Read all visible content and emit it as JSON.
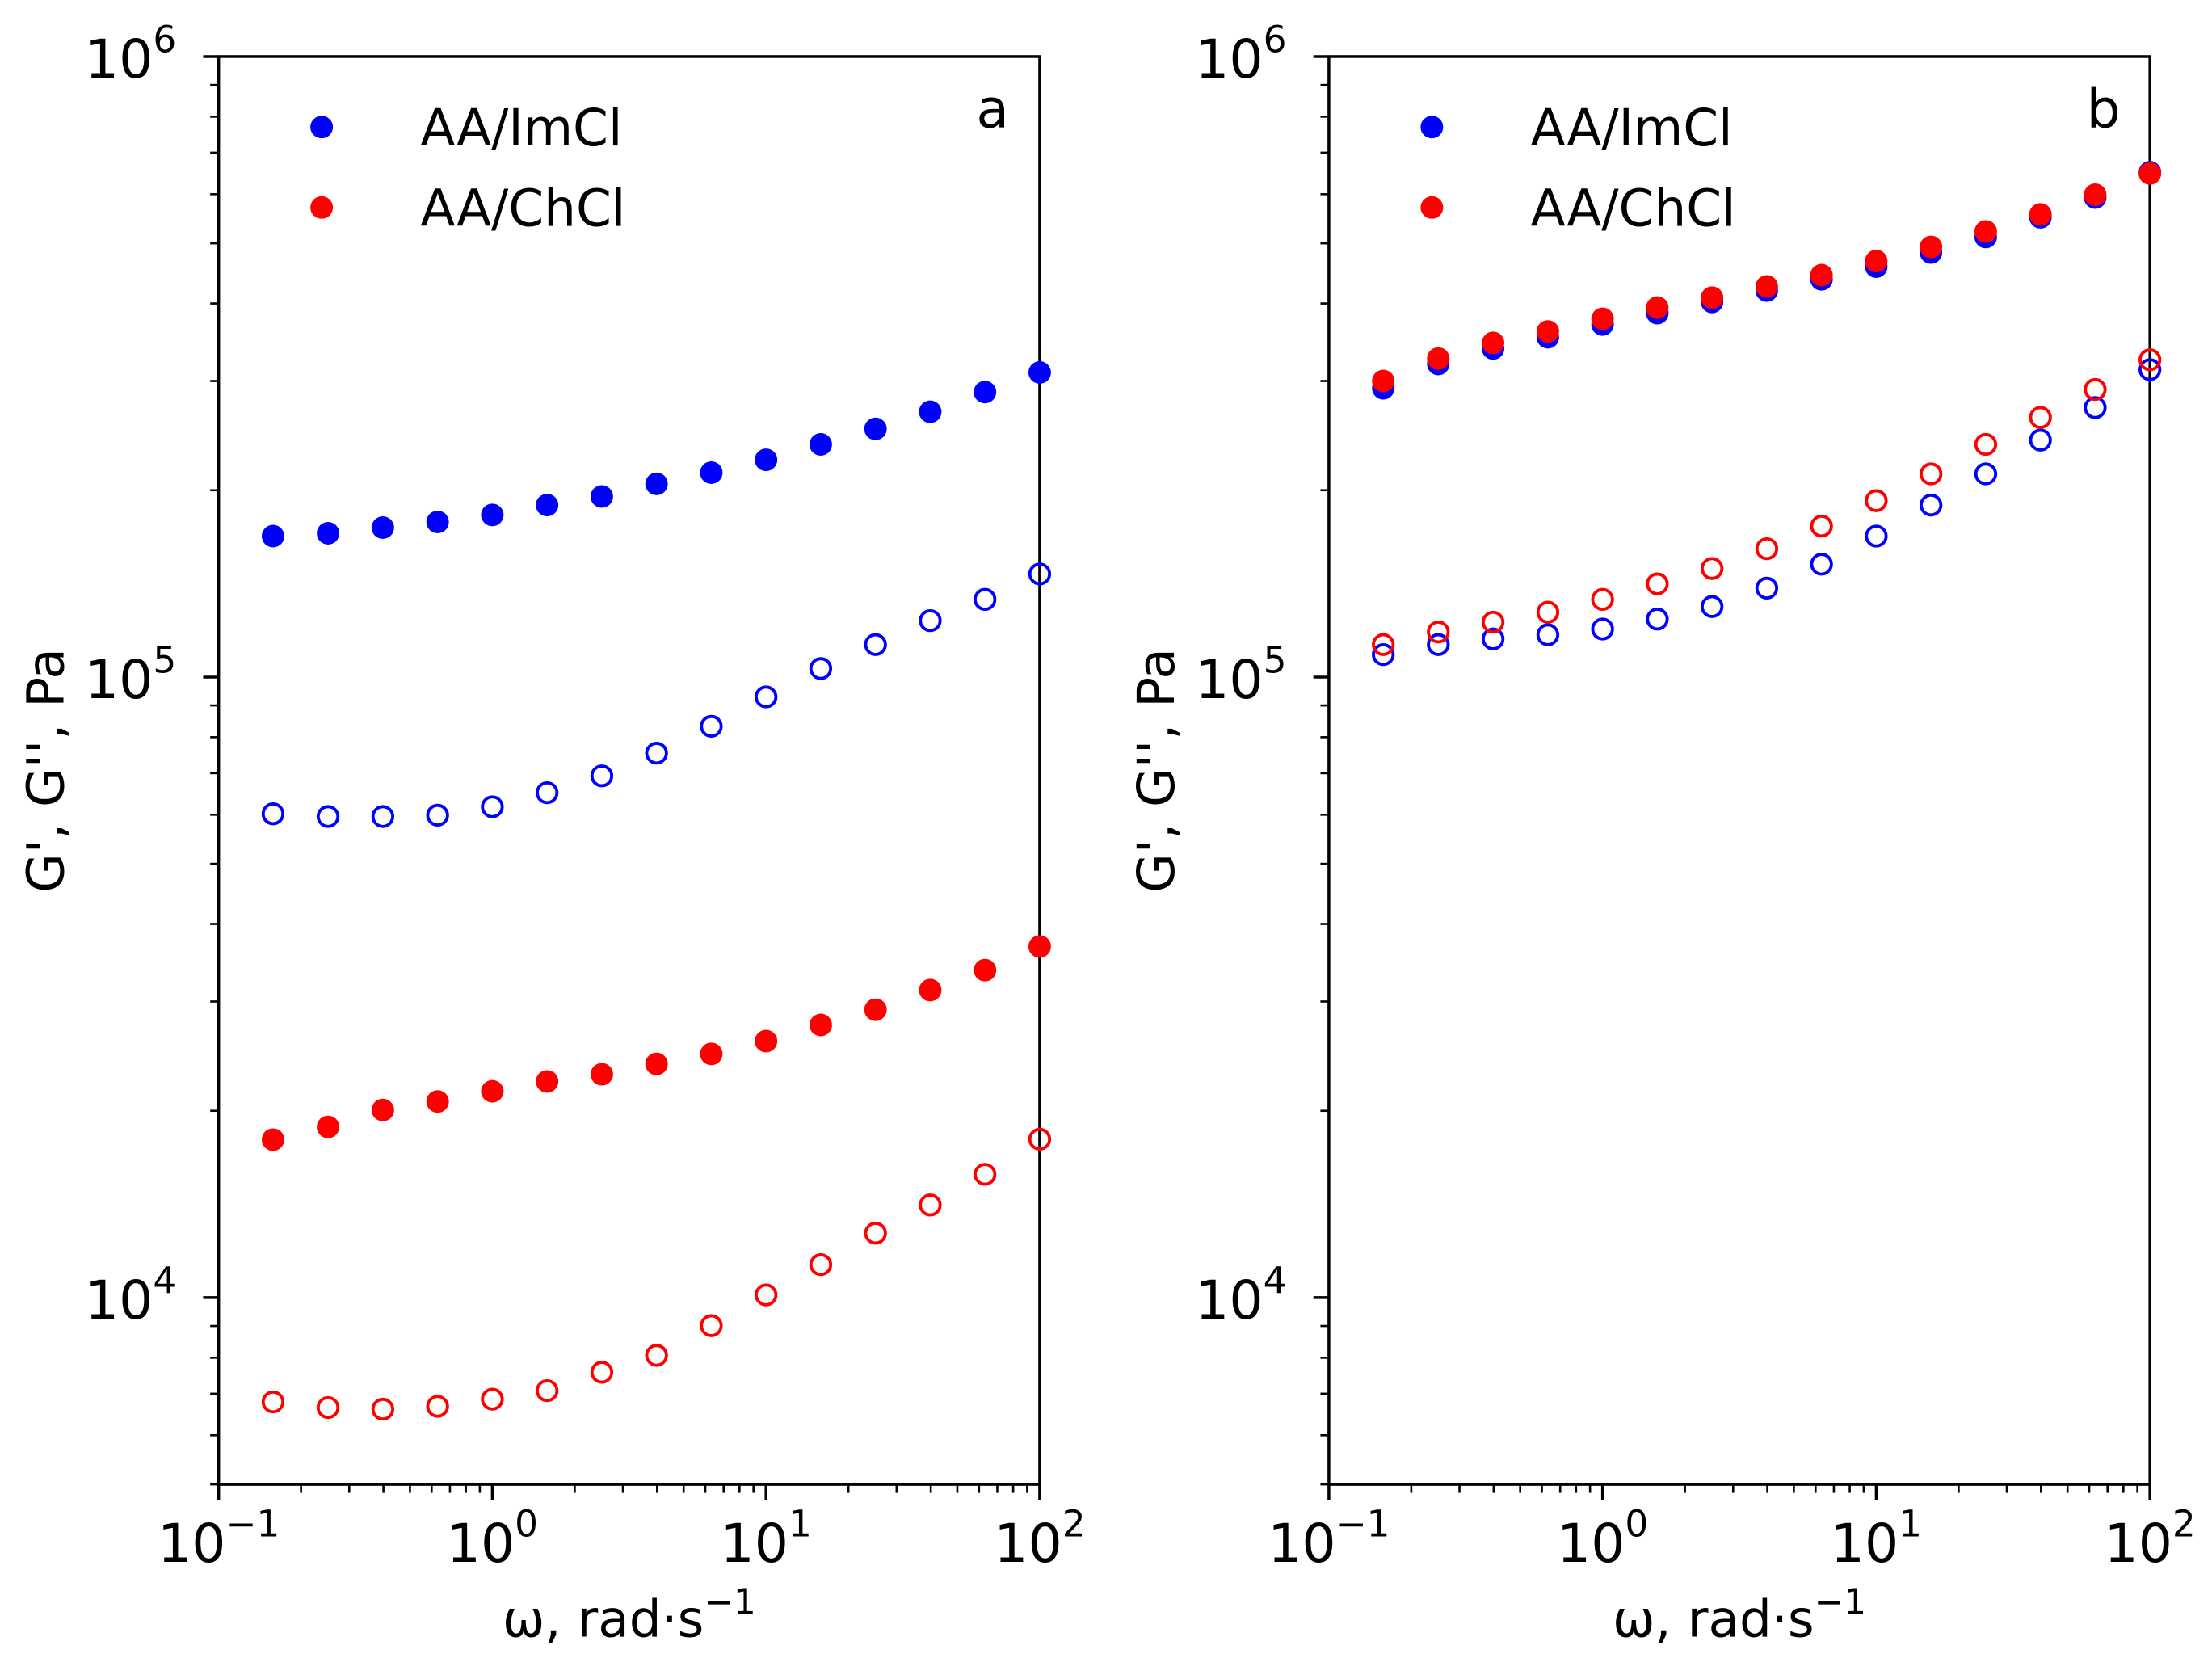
{
  "chart_data": [
    {
      "type": "scatter",
      "panel_label": "a",
      "xlabel": "ω, rad·s",
      "xlabel_exp": "−1",
      "ylabel": "G', G'', Pa",
      "xscale": "log",
      "yscale": "log",
      "xlim": [
        0.1,
        100
      ],
      "ylim": [
        5000,
        1000000
      ],
      "x_ticks": [
        {
          "base": "10",
          "exp": "−1",
          "v": 0.1
        },
        {
          "base": "10",
          "exp": "0",
          "v": 1
        },
        {
          "base": "10",
          "exp": "1",
          "v": 10
        },
        {
          "base": "10",
          "exp": "2",
          "v": 100
        }
      ],
      "y_ticks": [
        {
          "base": "10",
          "exp": "4",
          "v": 10000
        },
        {
          "base": "10",
          "exp": "5",
          "v": 100000
        },
        {
          "base": "10",
          "exp": "6",
          "v": 1000000
        }
      ],
      "legend": {
        "placement": "top-left",
        "entries": [
          {
            "label": "AA/ImCl",
            "color": "#0000ff"
          },
          {
            "label": "AA/ChCl",
            "color": "#ff0000"
          }
        ]
      },
      "x": [
        0.158,
        0.251,
        0.398,
        0.631,
        1,
        1.585,
        2.512,
        3.981,
        6.31,
        10,
        15.85,
        25.12,
        39.81,
        63.1,
        100
      ],
      "series": [
        {
          "name": "AA/ImCl G'",
          "color": "#0000ff",
          "filled": true,
          "values": [
            168700,
            170500,
            174100,
            177800,
            182500,
            189300,
            195400,
            204800,
            213500,
            223900,
            237100,
            251200,
            267600,
            287900,
            309600
          ]
        },
        {
          "name": "AA/ImCl G''",
          "color": "#0000ff",
          "filled": false,
          "values": [
            60200,
            59600,
            59600,
            59900,
            61800,
            65100,
            69300,
            75400,
            83300,
            92900,
            103200,
            112800,
            123300,
            133400,
            146600
          ]
        },
        {
          "name": "AA/ChCl G'",
          "color": "#ff0000",
          "filled": true,
          "values": [
            17970,
            18840,
            20060,
            20700,
            21500,
            22300,
            22900,
            23800,
            24700,
            25900,
            27500,
            29100,
            31300,
            33700,
            36800
          ]
        },
        {
          "name": "AA/ChCl G''",
          "color": "#ff0000",
          "filled": false,
          "values": [
            6790,
            6650,
            6610,
            6680,
            6860,
            7080,
            7580,
            8070,
            9010,
            10100,
            11300,
            12700,
            14100,
            15800,
            18000
          ]
        }
      ]
    },
    {
      "type": "scatter",
      "panel_label": "b",
      "xlabel": "ω, rad·s",
      "xlabel_exp": "−1",
      "ylabel": "G', G'', Pa",
      "xscale": "log",
      "yscale": "log",
      "xlim": [
        0.1,
        100
      ],
      "ylim": [
        5000,
        1000000
      ],
      "x_ticks": [
        {
          "base": "10",
          "exp": "−1",
          "v": 0.1
        },
        {
          "base": "10",
          "exp": "0",
          "v": 1
        },
        {
          "base": "10",
          "exp": "1",
          "v": 10
        },
        {
          "base": "10",
          "exp": "2",
          "v": 100
        }
      ],
      "y_ticks": [
        {
          "base": "10",
          "exp": "4",
          "v": 10000
        },
        {
          "base": "10",
          "exp": "5",
          "v": 100000
        },
        {
          "base": "10",
          "exp": "6",
          "v": 1000000
        }
      ],
      "legend": {
        "placement": "top-left",
        "entries": [
          {
            "label": "AA/ImCl",
            "color": "#0000ff"
          },
          {
            "label": "AA/ChCl",
            "color": "#ff0000"
          }
        ]
      },
      "x": [
        0.158,
        0.251,
        0.398,
        0.631,
        1,
        1.585,
        2.512,
        3.981,
        6.31,
        10,
        15.85,
        25.12,
        39.81,
        63.1,
        100
      ],
      "series": [
        {
          "name": "AA/ImCl G'",
          "color": "#0000ff",
          "filled": true,
          "values": [
            292000,
            319600,
            338400,
            352900,
            369900,
            385900,
            402300,
            419600,
            437500,
            458600,
            483200,
            511900,
            550700,
            592600,
            651000
          ]
        },
        {
          "name": "AA/ChCl G'",
          "color": "#ff0000",
          "filled": true,
          "values": [
            300000,
            326000,
            345600,
            360600,
            377900,
            394000,
            408700,
            426100,
            444400,
            468200,
            493400,
            522600,
            556600,
            598800,
            647800
          ]
        },
        {
          "name": "AA/ImCl G''",
          "color": "#0000ff",
          "filled": false,
          "values": [
            108700,
            112800,
            115200,
            117000,
            119500,
            124000,
            129900,
            139100,
            152000,
            168700,
            189300,
            212500,
            240900,
            271800,
            312900
          ]
        },
        {
          "name": "AA/ChCl G''",
          "color": "#ff0000",
          "filled": false,
          "values": [
            112800,
            118200,
            122600,
            127200,
            133400,
            141300,
            149600,
            161000,
            175100,
            192400,
            212500,
            237100,
            262000,
            290700,
            324600
          ]
        }
      ]
    }
  ]
}
